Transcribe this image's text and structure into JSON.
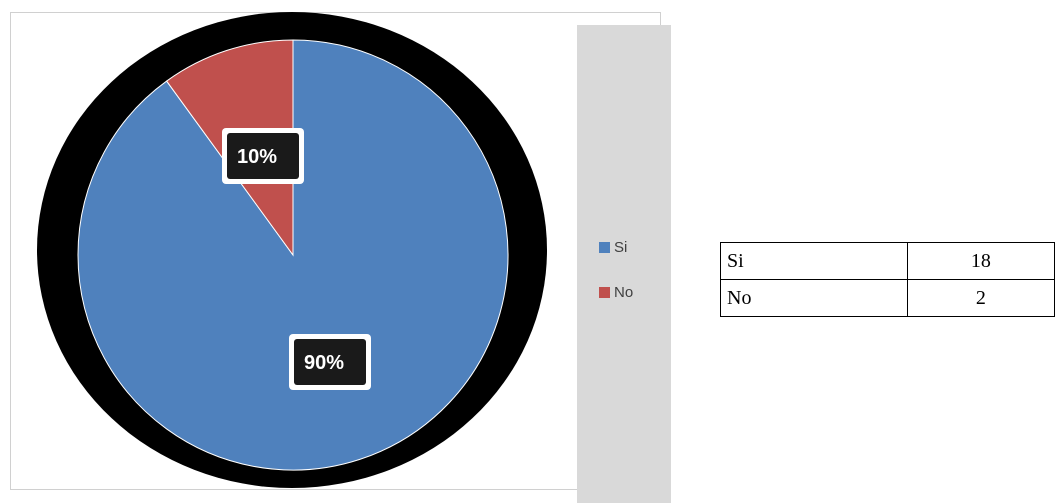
{
  "chart_data": {
    "type": "pie",
    "categories": [
      "Si",
      "No"
    ],
    "values": [
      90,
      10
    ],
    "data_labels": [
      "90%",
      "10%"
    ],
    "colors": [
      "#4f81bd",
      "#c0504d"
    ],
    "legend": {
      "entries": [
        "Si",
        "No"
      ],
      "placement": "right"
    }
  },
  "table": {
    "rows": [
      {
        "label": "Si",
        "value": "18"
      },
      {
        "label": "No",
        "value": "2"
      }
    ]
  }
}
